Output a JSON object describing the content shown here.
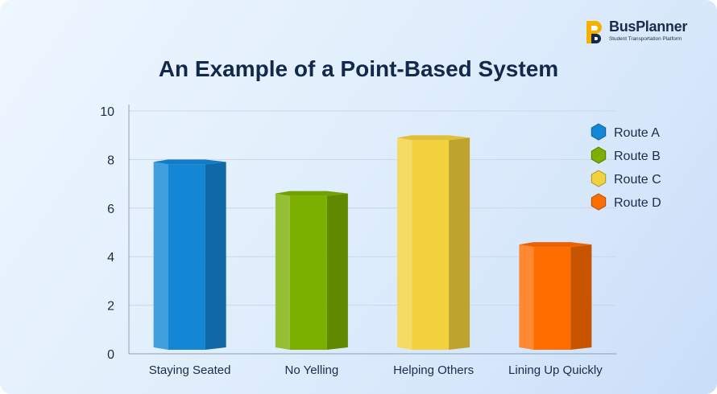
{
  "brand": {
    "name": "BusPlanner",
    "tagline": "Student Transportation Platform",
    "accent": "#f5b000"
  },
  "chart_data": {
    "type": "bar",
    "title": "An Example of a Point-Based System",
    "xlabel": "",
    "ylabel": "",
    "categories": [
      "Staying Seated",
      "No Yelling",
      "Helping Others",
      "Lining Up Quickly"
    ],
    "series": [
      {
        "name": "Route A",
        "values": [
          7.9,
          null,
          null,
          null
        ],
        "color": "#1387d6"
      },
      {
        "name": "Route B",
        "values": [
          null,
          6.6,
          null,
          null
        ],
        "color": "#7bb000"
      },
      {
        "name": "Route C",
        "values": [
          null,
          null,
          8.9,
          null
        ],
        "color": "#f3d13c"
      },
      {
        "name": "Route D",
        "values": [
          null,
          null,
          null,
          4.5
        ],
        "color": "#ff6c00"
      }
    ],
    "ylim": [
      0,
      10
    ],
    "yticks": [
      0,
      2,
      4,
      6,
      8,
      10
    ],
    "grid": true,
    "legend": "right"
  }
}
